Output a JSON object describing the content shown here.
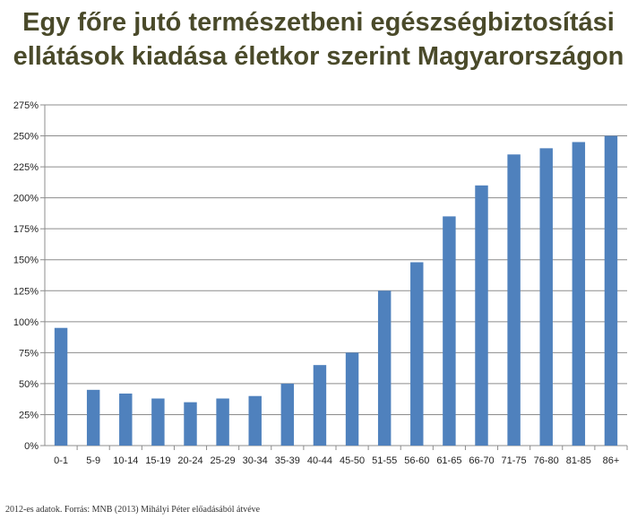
{
  "title_lines": [
    "Egy főre jutó természetbeni egészségbiztosítási",
    "ellátások kiadása életkor szerint Magyarországon"
  ],
  "footnote": "2012-es adatok. Forrás: MNB (2013) Mihályi Péter előadásából átvéve",
  "colors": {
    "bar": "#4f81bd",
    "grid": "#8c8c8c",
    "axis": "#8c8c8c",
    "text": "#222222"
  },
  "chart_data": {
    "type": "bar",
    "title": "",
    "xlabel": "",
    "ylabel": "",
    "categories": [
      "0-1",
      "5-9",
      "10-14",
      "15-19",
      "20-24",
      "25-29",
      "30-34",
      "35-39",
      "40-44",
      "45-50",
      "51-55",
      "56-60",
      "61-65",
      "66-70",
      "71-75",
      "76-80",
      "81-85",
      "86+"
    ],
    "values": [
      95,
      45,
      42,
      38,
      35,
      38,
      40,
      50,
      65,
      75,
      125,
      148,
      185,
      210,
      235,
      240,
      245,
      250
    ],
    "ylim": [
      0,
      275
    ],
    "yticks": [
      "0%",
      "25%",
      "50%",
      "75%",
      "100%",
      "125%",
      "150%",
      "175%",
      "200%",
      "225%",
      "250%",
      "275%"
    ],
    "grid": true,
    "legend": "none"
  }
}
